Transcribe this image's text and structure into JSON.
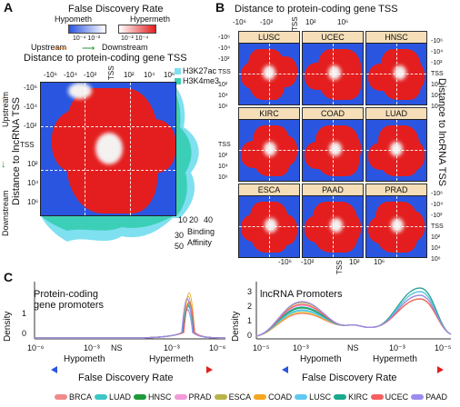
{
  "panelA": {
    "letter": "A",
    "fdr_title": "False Discovery Rate",
    "hypometh": "Hypometh",
    "hypermeth": "Hypermeth",
    "scale_left": "10⁻⁴ 10⁻²",
    "scale_right": "10⁻² 10⁻⁴",
    "upstream": "Upstream",
    "downstream": "Downstream",
    "x_title": "Distance to protein-coding gene TSS",
    "x_ticks": [
      "-10⁶",
      "-10⁴",
      "-10²",
      "TSS",
      "10²",
      "10⁴",
      "10⁶"
    ],
    "legend_h3k27ac": "H3K27ac",
    "legend_h3k4me3": "H3K4me3",
    "y_ticks": [
      "-10⁶",
      "-10⁴",
      "-10²",
      "TSS",
      "10²",
      "10⁴",
      "10⁶"
    ],
    "y_title": "Distance to lncRNA TSS",
    "y_upstream": "Upstream",
    "y_downstream": "Downstream",
    "binding_ticks_x": [
      "10",
      "20",
      "40"
    ],
    "binding_ticks_y": [
      "30",
      "50"
    ],
    "binding_label": "Binding",
    "affinity_label": "Affinity"
  },
  "panelB": {
    "letter": "B",
    "x_title": "Distance to protein-coding gene TSS",
    "x_ticks": [
      "-10⁶",
      "-10²",
      "TSS",
      "10²",
      "10⁶"
    ],
    "y_title": "Distance to lncRNA TSS",
    "y_ticks": [
      "-10⁶",
      "-10⁴",
      "-10²",
      "TSS",
      "10²",
      "10⁴",
      "10⁶"
    ],
    "cells": [
      "LUSC",
      "UCEC",
      "HNSC",
      "KIRC",
      "COAD",
      "LUAD",
      "ESCA",
      "PAAD",
      "PRAD"
    ]
  },
  "panelC": {
    "letter": "C",
    "left_title_1": "Protein-coding",
    "left_title_2": "gene promoters",
    "right_title": "lncRNA Promoters",
    "ylabel": "Density",
    "left_yticks": [
      "1",
      "0"
    ],
    "right_yticks": [
      "3",
      "2",
      "1",
      "0"
    ],
    "left_xticks": [
      "10⁻⁶",
      "10⁻³",
      "NS",
      "10⁻³",
      "10⁻⁶"
    ],
    "right_xticks": [
      "10⁻⁵",
      "10⁻³",
      "NS",
      "10⁻³",
      "10⁻⁵"
    ],
    "hypometh": "Hypometh",
    "hypermeth": "Hypermeth",
    "xlabel": "False Discovery Rate"
  },
  "legend": [
    {
      "name": "BRCA",
      "color": "#f08a8a"
    },
    {
      "name": "LUAD",
      "color": "#3ec6c6"
    },
    {
      "name": "HNSC",
      "color": "#1f9a3a"
    },
    {
      "name": "PRAD",
      "color": "#f29ad8"
    },
    {
      "name": "ESCA",
      "color": "#b8b34a"
    },
    {
      "name": "COAD",
      "color": "#f5a623"
    },
    {
      "name": "LUSC",
      "color": "#5fc9f0"
    },
    {
      "name": "KIRC",
      "color": "#1aa88f"
    },
    {
      "name": "UCEC",
      "color": "#f46060"
    },
    {
      "name": "PAAD",
      "color": "#9d8cf0"
    }
  ],
  "colors": {
    "hypo": "#2a55e0",
    "hyper": "#e41e1e",
    "h3k27ac": "#7fe0f0",
    "h3k4me3": "#3ccfb8"
  }
}
